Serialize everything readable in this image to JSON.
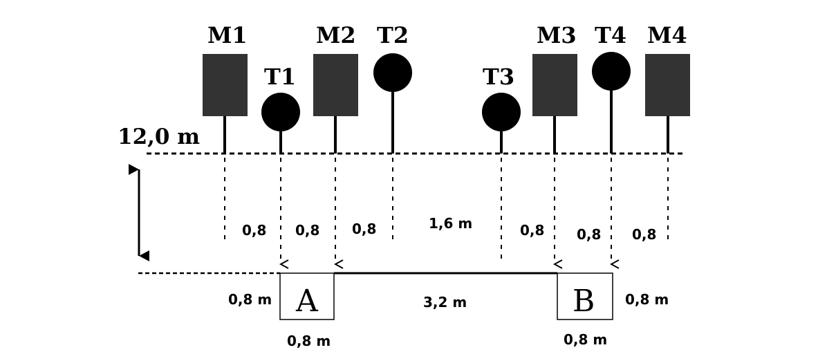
{
  "diagram": {
    "height_label": "12,0 m",
    "microphones": [
      {
        "label": "M1"
      },
      {
        "label": "M2"
      },
      {
        "label": "M3"
      },
      {
        "label": "M4"
      }
    ],
    "transmitters": [
      {
        "label": "T1"
      },
      {
        "label": "T2"
      },
      {
        "label": "T3"
      },
      {
        "label": "T4"
      }
    ],
    "spacings": [
      "0,8",
      "0,8",
      "0,8",
      "1,6 m",
      "0,8",
      "0,8",
      "0,8"
    ],
    "boxes": [
      {
        "label": "A",
        "side_label": "0,8 m",
        "bottom_label": "0,8 m"
      },
      {
        "label": "B",
        "side_label": "0,8 m",
        "bottom_label": "0,8 m"
      }
    ],
    "gap_label": "3,2 m",
    "colors": {
      "mic_fill": "#333333",
      "line": "#000000"
    }
  }
}
